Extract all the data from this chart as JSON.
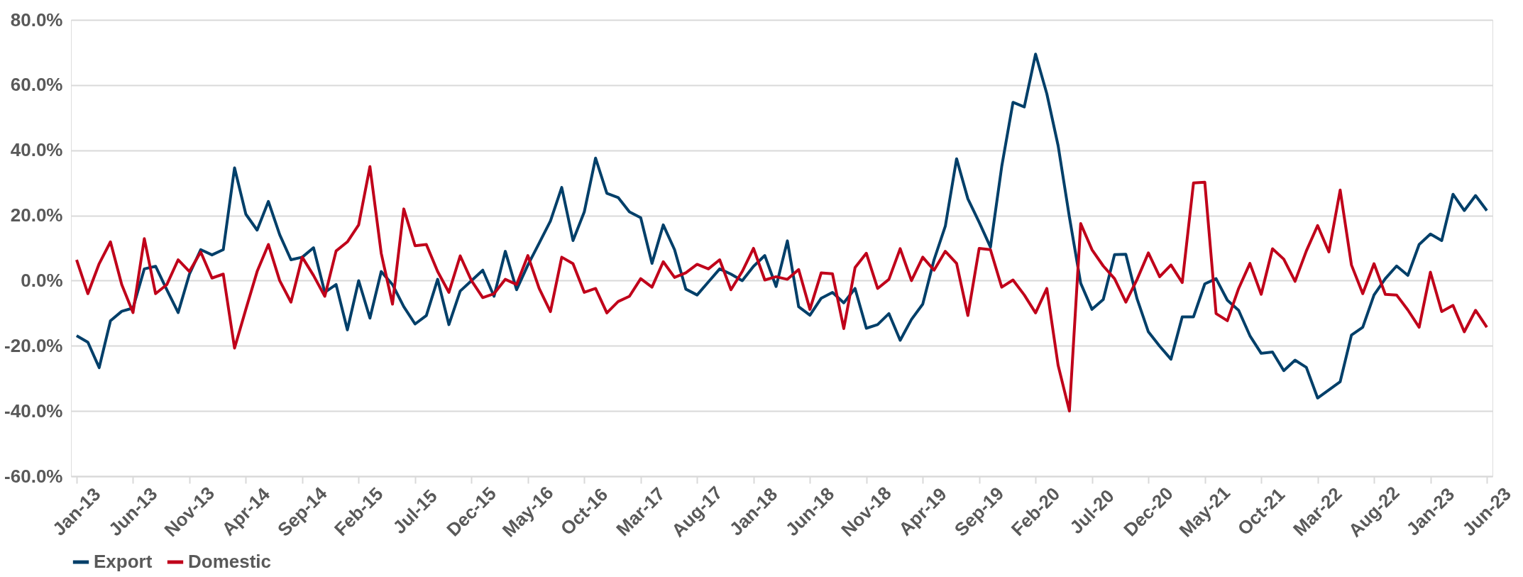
{
  "chart_data": {
    "type": "line",
    "categories": [
      "Jan-13",
      null,
      null,
      null,
      null,
      "Jun-13",
      null,
      null,
      null,
      null,
      "Nov-13",
      null,
      null,
      null,
      null,
      "Apr-14",
      null,
      null,
      null,
      null,
      "Sep-14",
      null,
      null,
      null,
      null,
      "Feb-15",
      null,
      null,
      null,
      null,
      "Jul-15",
      null,
      null,
      null,
      null,
      "Dec-15",
      null,
      null,
      null,
      null,
      "May-16",
      null,
      null,
      null,
      null,
      "Oct-16",
      null,
      null,
      null,
      null,
      "Mar-17",
      null,
      null,
      null,
      null,
      "Aug-17",
      null,
      null,
      null,
      null,
      "Jan-18",
      null,
      null,
      null,
      null,
      "Jun-18",
      null,
      null,
      null,
      null,
      "Nov-18",
      null,
      null,
      null,
      null,
      "Apr-19",
      null,
      null,
      null,
      null,
      "Sep-19",
      null,
      null,
      null,
      null,
      "Feb-20",
      null,
      null,
      null,
      null,
      "Jul-20",
      null,
      null,
      null,
      null,
      "Dec-20",
      null,
      null,
      null,
      null,
      "May-21",
      null,
      null,
      null,
      null,
      "Oct-21",
      null,
      null,
      null,
      null,
      "Mar-22",
      null,
      null,
      null,
      null,
      "Aug-22",
      null,
      null,
      null,
      null,
      "Jan-23",
      null,
      null,
      null,
      null,
      "Jun-23"
    ],
    "series": [
      {
        "name": "Export",
        "color": "#003f69",
        "values": [
          -16.9,
          -18.9,
          -26.7,
          -12.3,
          -9.4,
          -8.4,
          3.6,
          4.4,
          -2.8,
          -9.8,
          2.0,
          9.5,
          7.9,
          9.5,
          34.6,
          20.4,
          15.5,
          24.3,
          14.1,
          6.4,
          7.2,
          10.1,
          -3.6,
          -1.2,
          -15.1,
          0,
          -11.5,
          2.8,
          -1.2,
          -8.0,
          -13.3,
          -10.7,
          0.4,
          -13.5,
          -3.2,
          0,
          3.2,
          -4.8,
          9.0,
          -2.8,
          4.8,
          11.5,
          18.3,
          28.6,
          12.3,
          21.1,
          37.6,
          26.8,
          25.5,
          21.1,
          19.3,
          5.3,
          17.1,
          9.5,
          -2.6,
          -4.4,
          -0.4,
          3.6,
          2.0,
          0,
          4.4,
          7.7,
          -1.8,
          12.2,
          -8.0,
          -10.6,
          -5.4,
          -3.6,
          -6.8,
          -2.4,
          -14.6,
          -13.5,
          -10.1,
          -18.3,
          -11.9,
          -7.2,
          6.4,
          16.7,
          37.4,
          25.1,
          17.9,
          10.3,
          35.0,
          54.7,
          53.3,
          69.5,
          57.3,
          41.4,
          19.5,
          -0.8,
          -8.8,
          -5.8,
          8.0,
          8.1,
          -5.6,
          -15.7,
          -20.1,
          -24.1,
          -11.1,
          -11.1,
          -1.0,
          0.6,
          -6.0,
          -9.1,
          -16.9,
          -22.3,
          -21.9,
          -27.6,
          -24.4,
          -26.6,
          -36,
          -33.5,
          -31,
          -16.7,
          -14.3,
          -4.4,
          0.6,
          4.5,
          1.6,
          11.1,
          14.3,
          12.3,
          26.5,
          21.5,
          26.1,
          21.5
        ]
      },
      {
        "name": "Domestic",
        "color": "#c0001a",
        "values": [
          6.4,
          -4.0,
          5.2,
          11.9,
          -1.2,
          -9.8,
          12.9,
          -4.0,
          -1.2,
          6.4,
          2.8,
          8.8,
          0.8,
          2.0,
          -20.7,
          -8.8,
          2.8,
          11.1,
          0,
          -6.6,
          7.2,
          1.6,
          -4.8,
          9.1,
          11.9,
          17.1,
          35.0,
          8.4,
          -7.2,
          22.0,
          10.7,
          11.1,
          2.8,
          -3.6,
          7.6,
          0,
          -5.2,
          -4.0,
          0.4,
          -1.2,
          7.7,
          -2.4,
          -9.5,
          7.2,
          5.2,
          -3.6,
          -2.4,
          -9.9,
          -6.4,
          -4.8,
          0.6,
          -2.0,
          5.8,
          1.0,
          2.4,
          5.0,
          3.6,
          6.4,
          -2.8,
          2.8,
          9.9,
          0.2,
          1.2,
          0.4,
          3.4,
          -8.8,
          2.4,
          2.1,
          -14.7,
          4.0,
          8.4,
          -2.4,
          0.4,
          9.8,
          0,
          7.2,
          3.2,
          9.0,
          5.3,
          -10.7,
          9.9,
          9.5,
          -2.0,
          0.2,
          -4.4,
          -9.9,
          -2.4,
          -26,
          -40,
          17.5,
          9.5,
          4.5,
          0.6,
          -6.6,
          0.4,
          8.5,
          1.2,
          4.8,
          -0.6,
          30.0,
          30.2,
          -10.1,
          -12.3,
          -2.4,
          5.3,
          -4.2,
          9.8,
          6.6,
          -0.2,
          9.1,
          16.9,
          8.8,
          27.8,
          4.8,
          -4.0,
          5.2,
          -4.2,
          -4.4,
          -9.0,
          -14.3,
          2.6,
          -9.5,
          -7.6,
          -15.7,
          -9.1,
          -14.3
        ]
      }
    ],
    "ylim": [
      -60,
      80
    ],
    "yticks": [
      {
        "value": -60,
        "label": "-60.0%"
      },
      {
        "value": -40,
        "label": "-40.0%"
      },
      {
        "value": -20,
        "label": "-20.0%"
      },
      {
        "value": 0,
        "label": "0.0%"
      },
      {
        "value": 20,
        "label": "20.0%"
      },
      {
        "value": 40,
        "label": "40.0%"
      },
      {
        "value": 60,
        "label": "60.0%"
      },
      {
        "value": 80,
        "label": "80.0%"
      }
    ],
    "grid": "y",
    "legend": "bottom",
    "marker": "none",
    "line_style": "solid"
  }
}
